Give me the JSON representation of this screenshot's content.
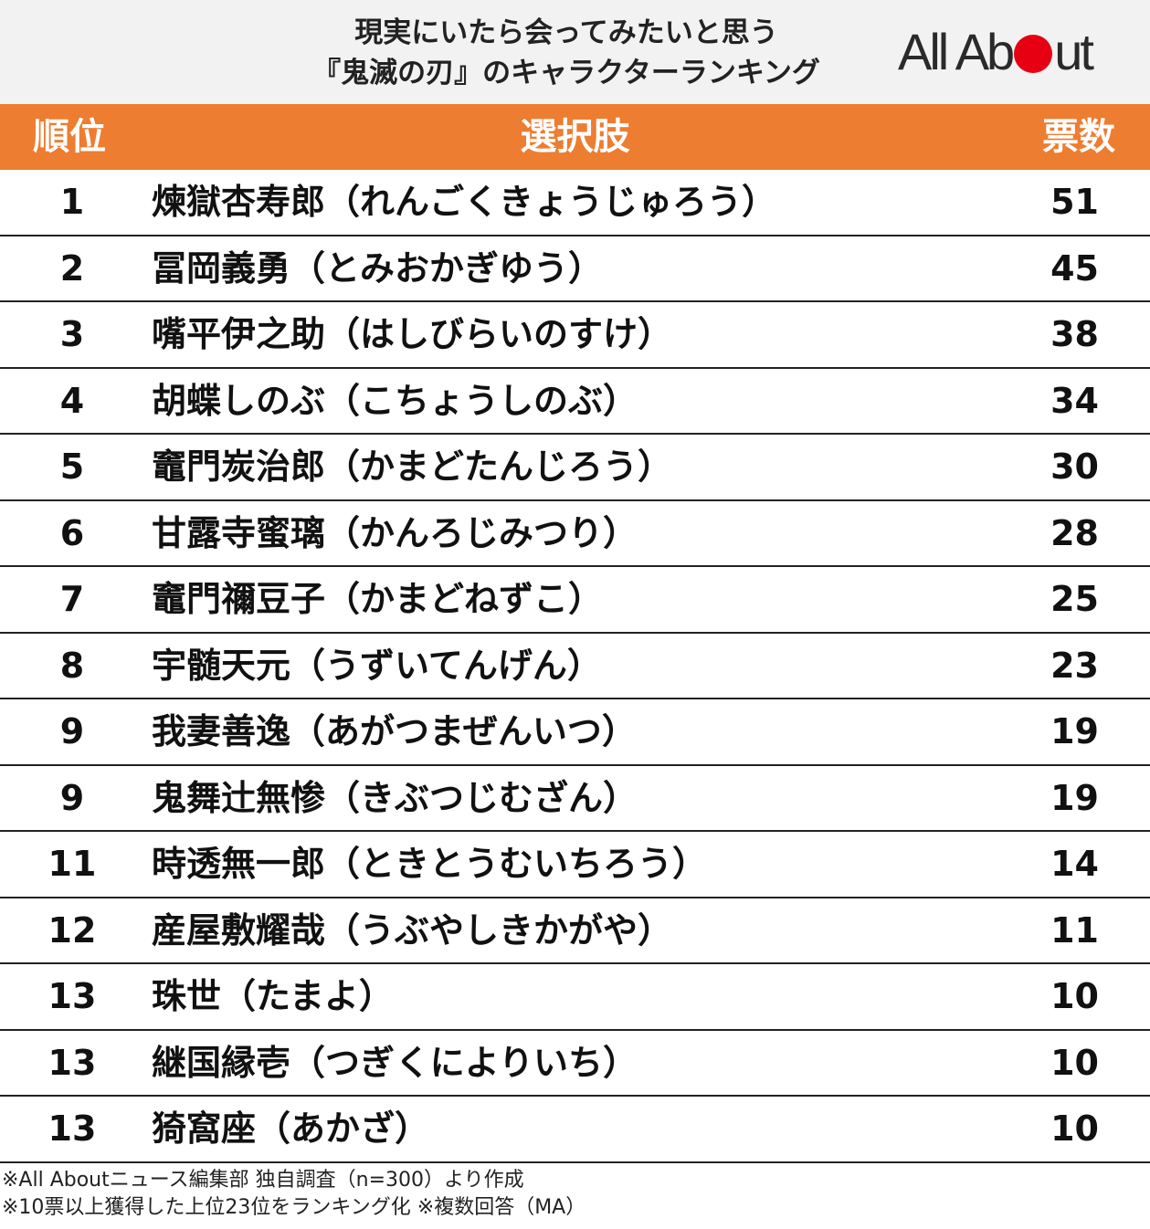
{
  "header": {
    "title_line1": "現実にいたら会ってみたいと思う",
    "title_line2": "『鬼滅の刃』のキャラクターランキング",
    "logo_left": "All Ab",
    "logo_right": "ut",
    "logo_accent_color": "#e60012"
  },
  "columns": {
    "rank": "順位",
    "choice": "選択肢",
    "votes": "票数",
    "header_color": "#ed7d31"
  },
  "rows": [
    {
      "rank": "1",
      "name": "煉獄杏寿郎（れんごくきょうじゅろう）",
      "votes": "51"
    },
    {
      "rank": "2",
      "name": "冨岡義勇（とみおかぎゆう）",
      "votes": "45"
    },
    {
      "rank": "3",
      "name": "嘴平伊之助（はしびらいのすけ）",
      "votes": "38"
    },
    {
      "rank": "4",
      "name": "胡蝶しのぶ（こちょうしのぶ）",
      "votes": "34"
    },
    {
      "rank": "5",
      "name": "竈門炭治郎（かまどたんじろう）",
      "votes": "30"
    },
    {
      "rank": "6",
      "name": "甘露寺蜜璃（かんろじみつり）",
      "votes": "28"
    },
    {
      "rank": "7",
      "name": "竈門禰豆子（かまどねずこ）",
      "votes": "25"
    },
    {
      "rank": "8",
      "name": "宇髄天元（うずいてんげん）",
      "votes": "23"
    },
    {
      "rank": "9",
      "name": "我妻善逸（あがつまぜんいつ）",
      "votes": "19"
    },
    {
      "rank": "9",
      "name": "鬼舞辻無惨（きぶつじむざん）",
      "votes": "19"
    },
    {
      "rank": "11",
      "name": "時透無一郎（ときとうむいちろう）",
      "votes": "14"
    },
    {
      "rank": "12",
      "name": "産屋敷耀哉（うぶやしきかがや）",
      "votes": "11"
    },
    {
      "rank": "13",
      "name": "珠世（たまよ）",
      "votes": "10"
    },
    {
      "rank": "13",
      "name": "継国縁壱（つぎくによりいち）",
      "votes": "10"
    },
    {
      "rank": "13",
      "name": "猗窩座（あかざ）",
      "votes": "10"
    }
  ],
  "notes": {
    "line1": "※All Aboutニュース編集部 独自調査（n=300）より作成",
    "line2": "※10票以上獲得した上位23位をランキング化 ※複数回答（MA）"
  }
}
